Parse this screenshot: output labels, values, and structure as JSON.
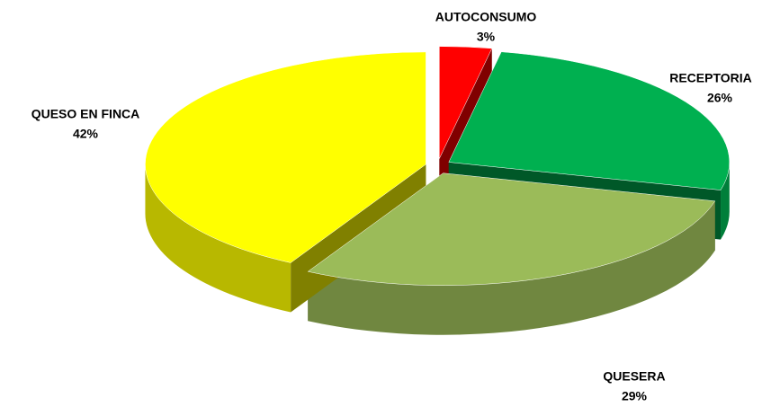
{
  "chart_data": {
    "type": "pie",
    "categories": [
      "AUTOCONSUMO",
      "RECEPTORIA",
      "QUESERA",
      "QUESO EN FINCA"
    ],
    "values": [
      3,
      26,
      29,
      42
    ],
    "value_labels": [
      "3%",
      "26%",
      "29%",
      "42%"
    ],
    "colors": [
      "#ff0000",
      "#00b050",
      "#9bbb59",
      "#ffff00"
    ]
  }
}
